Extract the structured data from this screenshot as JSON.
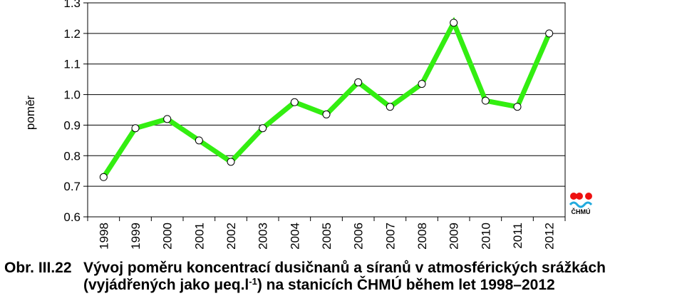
{
  "chart_data": {
    "type": "line",
    "categories": [
      "1998",
      "1999",
      "2000",
      "2001",
      "2002",
      "2003",
      "2004",
      "2005",
      "2006",
      "2007",
      "2008",
      "2009",
      "2010",
      "2011",
      "2012"
    ],
    "series": [
      {
        "values": [
          0.73,
          0.89,
          0.92,
          0.85,
          0.78,
          0.89,
          0.975,
          0.935,
          1.04,
          0.96,
          1.035,
          1.235,
          0.98,
          0.96,
          1.2
        ]
      }
    ],
    "ylabel": "poměr",
    "xlabel": "",
    "ylim": [
      0.6,
      1.3
    ],
    "yticks": [
      0.6,
      0.7,
      0.8,
      0.9,
      1.0,
      1.1,
      1.2,
      1.3
    ],
    "ytick_labels": [
      "0.6",
      "0.7",
      "0.8",
      "0.9",
      "1.0",
      "1.1",
      "1.2",
      "1.3"
    ],
    "grid": true,
    "line_color": "#33ee11",
    "marker_fill": "#ffffff"
  },
  "logo": {
    "text": "ČHMÚ",
    "colors": [
      "#ee1111",
      "#22aadd"
    ]
  },
  "caption": {
    "number": "Obr. III.22",
    "line1": "Vývoj poměru koncentrací dusičnanů a síranů v atmosférických srážkách",
    "line2_pre": "(vyjádřených jako μeq.l",
    "line2_sup": "-1",
    "line2_post": ") na stanicích ČHMÚ během let 1998–2012"
  }
}
